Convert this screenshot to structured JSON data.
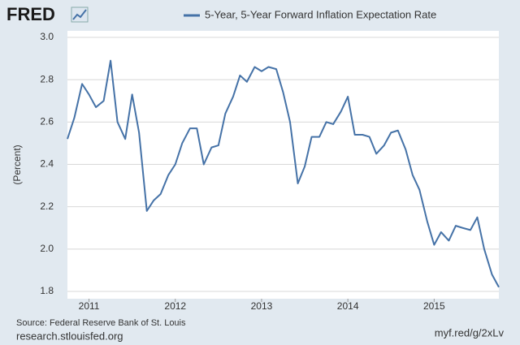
{
  "logo": "FRED",
  "chart_data": {
    "type": "line",
    "ylabel": "(Percent)",
    "source": "Source: Federal Reserve Bank of St. Louis",
    "site": "research.stlouisfed.org",
    "short_url": "myf.red/g/2xLv",
    "x": [
      2010.75,
      2010.83,
      2010.92,
      2011,
      2011.08,
      2011.17,
      2011.25,
      2011.33,
      2011.42,
      2011.5,
      2011.58,
      2011.67,
      2011.75,
      2011.83,
      2011.92,
      2012,
      2012.08,
      2012.17,
      2012.25,
      2012.33,
      2012.42,
      2012.5,
      2012.58,
      2012.67,
      2012.75,
      2012.83,
      2012.92,
      2013,
      2013.08,
      2013.17,
      2013.25,
      2013.33,
      2013.42,
      2013.5,
      2013.58,
      2013.67,
      2013.75,
      2013.83,
      2013.92,
      2014,
      2014.08,
      2014.17,
      2014.25,
      2014.33,
      2014.42,
      2014.5,
      2014.58,
      2014.67,
      2014.75,
      2014.83,
      2014.92,
      2015,
      2015.08,
      2015.17,
      2015.25,
      2015.33,
      2015.42,
      2015.5,
      2015.58,
      2015.67,
      2015.75
    ],
    "series": [
      {
        "name": "5-Year, 5-Year Forward Inflation Expectation Rate",
        "color": "#4572a7",
        "values": [
          2.52,
          2.62,
          2.78,
          2.73,
          2.67,
          2.7,
          2.89,
          2.6,
          2.52,
          2.73,
          2.55,
          2.18,
          2.23,
          2.26,
          2.35,
          2.4,
          2.5,
          2.57,
          2.57,
          2.4,
          2.48,
          2.49,
          2.64,
          2.72,
          2.82,
          2.79,
          2.86,
          2.84,
          2.86,
          2.85,
          2.74,
          2.6,
          2.31,
          2.39,
          2.53,
          2.53,
          2.6,
          2.59,
          2.65,
          2.72,
          2.54,
          2.54,
          2.53,
          2.45,
          2.49,
          2.55,
          2.56,
          2.47,
          2.35,
          2.28,
          2.13,
          2.02,
          2.08,
          2.04,
          2.11,
          2.1,
          2.09,
          2.15,
          2.0,
          1.88,
          1.82
        ]
      }
    ],
    "xlim": [
      2010.75,
      2015.75
    ],
    "xticks": [
      2011,
      2012,
      2013,
      2014,
      2015
    ],
    "ylim": [
      1.8,
      3.0
    ],
    "yticks": [
      1.8,
      {
        "value": 2.0,
        "label": "2.0"
      },
      2.2,
      2.4,
      2.6,
      2.8,
      {
        "value": 3.0,
        "label": "3.0"
      }
    ],
    "grid": true
  }
}
